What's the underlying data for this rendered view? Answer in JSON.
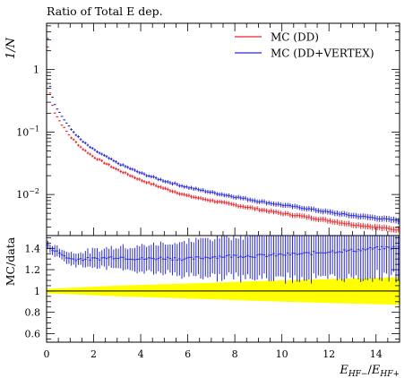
{
  "chart_data": [
    {
      "type": "scatter",
      "panel": "main",
      "title": "Ratio of Total E dep.",
      "ylabel": "1/N",
      "yscale": "log",
      "ylim": [
        0.0022,
        5.5
      ],
      "xlim": [
        0,
        15
      ],
      "y_ticks": [
        {
          "value": 0.01,
          "base": "10",
          "exp": "−2"
        },
        {
          "value": 0.1,
          "base": "10",
          "exp": "−1"
        },
        {
          "value": 1,
          "base": "1",
          "exp": ""
        }
      ],
      "legend": {
        "placement": "top-right",
        "entries": [
          {
            "label": "MC (DD)",
            "color": "#e8262b"
          },
          {
            "label": "MC (DD+VERTEX)",
            "color": "#2a2ad8"
          }
        ]
      },
      "bins": {
        "xmin": 0,
        "xmax": 15,
        "width": 0.1
      },
      "series": [
        {
          "name": "MC (DD)",
          "color": "#e8262b",
          "anchors": [
            [
              0.05,
              2.3
            ],
            [
              0.15,
              0.42
            ],
            [
              0.3,
              0.22
            ],
            [
              0.6,
              0.14
            ],
            [
              1.0,
              0.085
            ],
            [
              1.5,
              0.055
            ],
            [
              2.0,
              0.04
            ],
            [
              3.0,
              0.025
            ],
            [
              4.0,
              0.017
            ],
            [
              5.0,
              0.0125
            ],
            [
              6.0,
              0.0095
            ],
            [
              7.0,
              0.008
            ],
            [
              8.0,
              0.0068
            ],
            [
              9.0,
              0.0058
            ],
            [
              10.0,
              0.005
            ],
            [
              11.0,
              0.0044
            ],
            [
              12.0,
              0.0038
            ],
            [
              13.0,
              0.0033
            ],
            [
              14.0,
              0.003
            ],
            [
              15.0,
              0.0027
            ]
          ]
        },
        {
          "name": "MC (DD+VERTEX)",
          "color": "#2a2ad8",
          "anchors": [
            [
              0.05,
              3.2
            ],
            [
              0.15,
              0.55
            ],
            [
              0.3,
              0.3
            ],
            [
              0.6,
              0.19
            ],
            [
              1.0,
              0.115
            ],
            [
              1.5,
              0.072
            ],
            [
              2.0,
              0.052
            ],
            [
              3.0,
              0.032
            ],
            [
              4.0,
              0.022
            ],
            [
              5.0,
              0.0165
            ],
            [
              6.0,
              0.013
            ],
            [
              7.0,
              0.0108
            ],
            [
              8.0,
              0.0092
            ],
            [
              9.0,
              0.0078
            ],
            [
              10.0,
              0.0068
            ],
            [
              11.0,
              0.006
            ],
            [
              12.0,
              0.0052
            ],
            [
              13.0,
              0.0046
            ],
            [
              14.0,
              0.0042
            ],
            [
              15.0,
              0.0038
            ]
          ]
        }
      ]
    },
    {
      "type": "scatter",
      "panel": "ratio",
      "ylabel": "MC/data",
      "xlabel_parts": {
        "e1": "E",
        "s1": "HF−",
        "slash": "/",
        "e2": "E",
        "s2": "HF+"
      },
      "xlim": [
        0,
        15
      ],
      "ylim": [
        0.52,
        1.52
      ],
      "x_ticks": [
        0,
        2,
        4,
        6,
        8,
        10,
        12,
        14
      ],
      "y_ticks": [
        0.6,
        0.8,
        1,
        1.2,
        1.4
      ],
      "reference_line": 1.0,
      "uncertainty_band": {
        "color": "#ffff00",
        "half_width": [
          [
            0,
            0.02
          ],
          [
            3,
            0.05
          ],
          [
            6,
            0.07
          ],
          [
            10,
            0.1
          ],
          [
            15,
            0.13
          ]
        ]
      },
      "series": [
        {
          "name": "MC (DD+VERTEX)",
          "color": "#2a2ad8",
          "anchors": [
            [
              0.05,
              1.42
            ],
            [
              0.5,
              1.36
            ],
            [
              1.0,
              1.3
            ],
            [
              2.0,
              1.3
            ],
            [
              3.0,
              1.32
            ],
            [
              4.0,
              1.3
            ],
            [
              5.0,
              1.31
            ],
            [
              6.0,
              1.3
            ],
            [
              7.0,
              1.32
            ],
            [
              8.0,
              1.33
            ],
            [
              9.0,
              1.33
            ],
            [
              10.0,
              1.34
            ],
            [
              11.0,
              1.35
            ],
            [
              12.0,
              1.37
            ],
            [
              13.0,
              1.38
            ],
            [
              14.0,
              1.4
            ],
            [
              15.0,
              1.41
            ]
          ],
          "error": [
            [
              0,
              0.04
            ],
            [
              2,
              0.08
            ],
            [
              5,
              0.14
            ],
            [
              8,
              0.2
            ],
            [
              11,
              0.24
            ],
            [
              15,
              0.28
            ]
          ]
        }
      ]
    }
  ]
}
